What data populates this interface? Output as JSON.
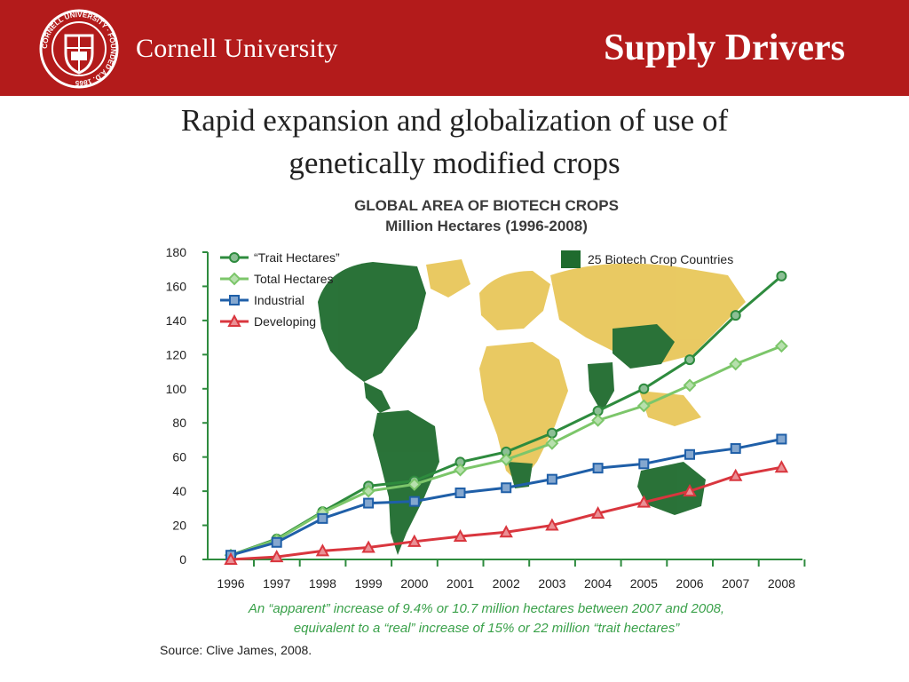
{
  "header": {
    "university": "Cornell University",
    "slide_title": "Supply Drivers",
    "seal_text": "CORNELL UNIVERSITY · FOUNDED A.D. 1865",
    "brand_color": "#b31b1b"
  },
  "subtitle": {
    "line1": "Rapid expansion and globalization of use of",
    "line2": "genetically modified crops"
  },
  "map_legend": "25 Biotech Crop Countries",
  "note": {
    "line1": "An “apparent” increase of 9.4% or 10.7 million hectares between 2007 and 2008,",
    "line2": "equivalent to a “real” increase of 15% or 22 million “trait hectares”"
  },
  "source": "Source: Clive James, 2008.",
  "chart_data": {
    "type": "line",
    "title": "GLOBAL AREA OF BIOTECH CROPS",
    "subtitle": "Million Hectares (1996-2008)",
    "x": [
      "1996",
      "1997",
      "1998",
      "1999",
      "2000",
      "2001",
      "2002",
      "2003",
      "2004",
      "2005",
      "2006",
      "2007",
      "2008"
    ],
    "ylim": [
      0,
      180
    ],
    "yticks": [
      0,
      20,
      40,
      60,
      80,
      100,
      120,
      140,
      160,
      180
    ],
    "grid": false,
    "legend_position": "top-left",
    "series": [
      {
        "name": "“Trait Hectares”",
        "color": "#2e8b3e",
        "marker": "circle",
        "values": [
          2.5,
          12,
          28,
          43,
          46,
          57,
          63,
          74,
          87,
          100,
          117,
          143,
          166
        ]
      },
      {
        "name": "Total Hectares",
        "color": "#7cc66a",
        "marker": "diamond",
        "values": [
          2.5,
          11.5,
          27.5,
          40,
          44,
          52.5,
          58.5,
          68,
          81.5,
          90,
          102,
          114.5,
          125
        ]
      },
      {
        "name": "Industrial",
        "color": "#1f5fa8",
        "marker": "square",
        "values": [
          2.5,
          10,
          24,
          33,
          34,
          39,
          42,
          47,
          53.5,
          56,
          61.5,
          65,
          70.5
        ]
      },
      {
        "name": "Developing",
        "color": "#d9363e",
        "marker": "triangle",
        "values": [
          0,
          1.5,
          5,
          7,
          10.5,
          13.5,
          16,
          20,
          27,
          33.5,
          40,
          49,
          54
        ]
      }
    ]
  }
}
